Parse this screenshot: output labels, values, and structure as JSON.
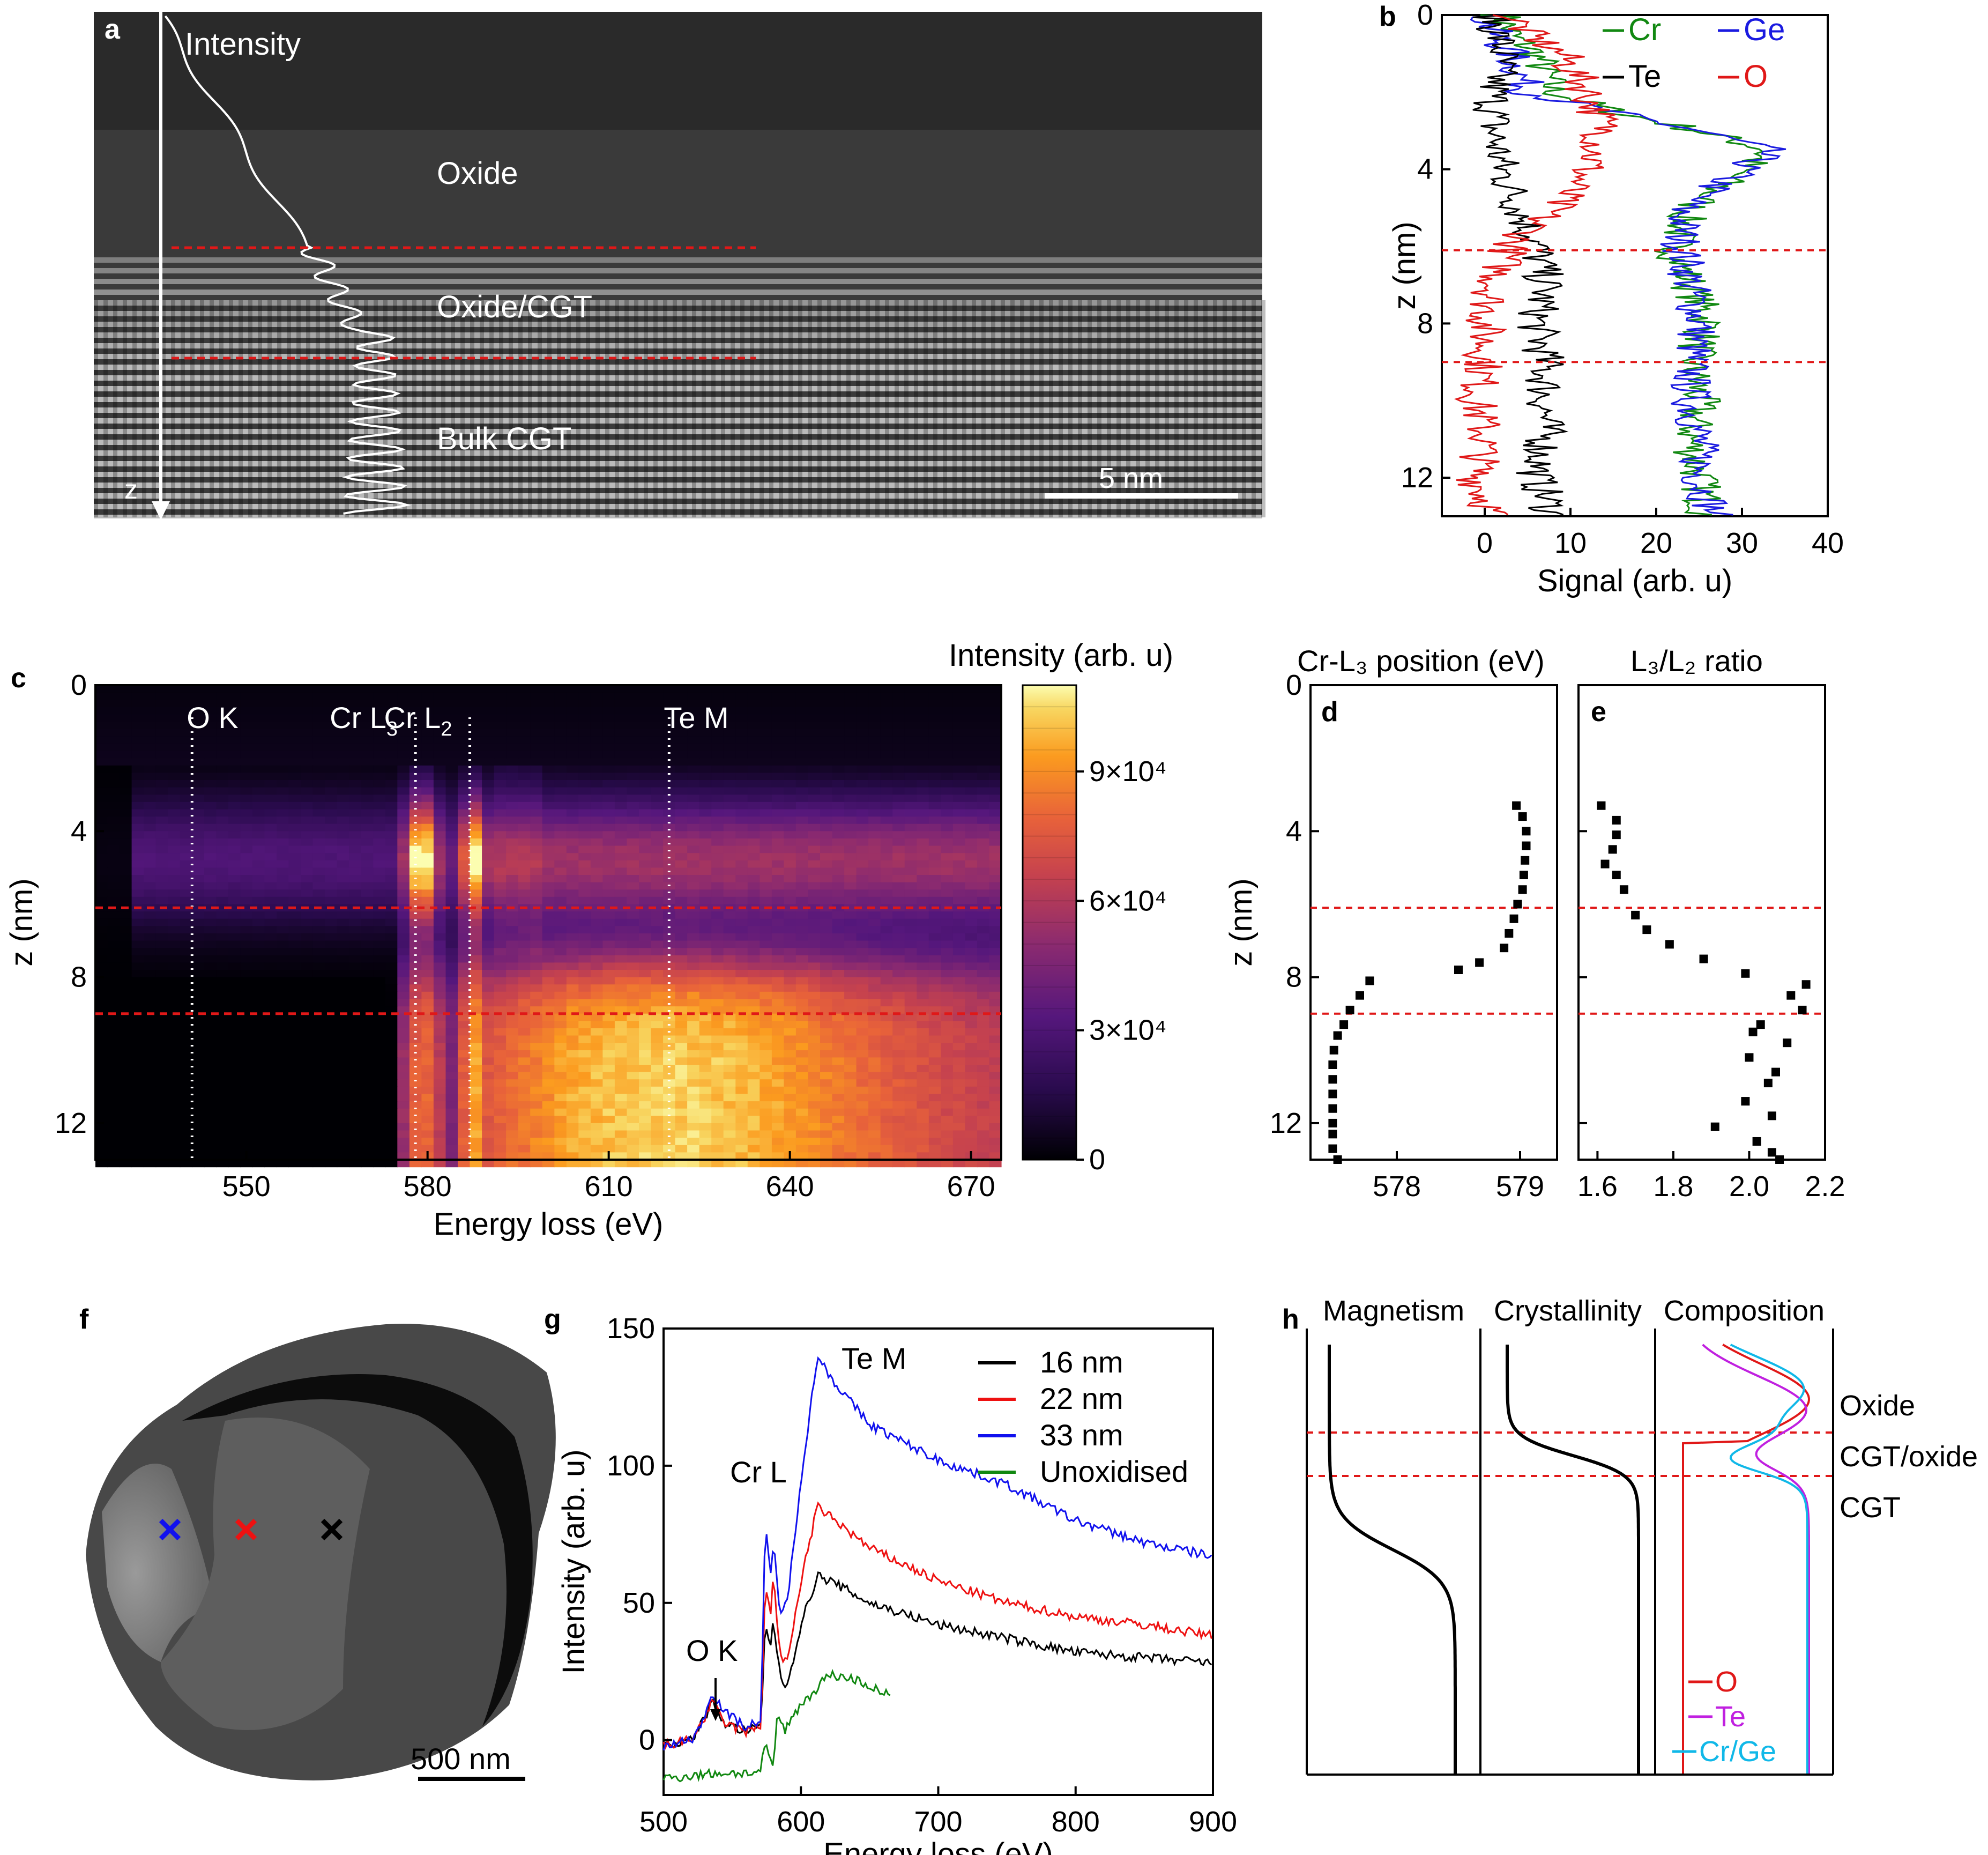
{
  "colors": {
    "Cr": "#118811",
    "Ge": "#1a1ae0",
    "Te": "#000000",
    "O": "#e01818",
    "Te_h": "#c020e0",
    "CrGe_h": "#10b8e8",
    "s16": "#000000",
    "s22": "#ee1111",
    "s33": "#1111ee",
    "unox": "#118811",
    "boundary": "#e01818"
  },
  "panels": {
    "a": {
      "label": "a",
      "intensity": "Intensity",
      "oxide": "Oxide",
      "oxide_cgt": "Oxide/CGT",
      "bulk": "Bulk CGT",
      "z": "z",
      "scale": "5 nm"
    },
    "b": {
      "label": "b"
    },
    "c": {
      "label": "c",
      "cbar_title": "Intensity (arb. u)"
    },
    "d": {
      "label": "d",
      "title": "Cr-L₃ position (eV)"
    },
    "e": {
      "label": "e",
      "title": "L₃/L₂ ratio"
    },
    "f": {
      "label": "f",
      "scale": "500 nm"
    },
    "g": {
      "label": "g"
    },
    "h": {
      "label": "h"
    }
  },
  "chart_data": [
    {
      "id": "b",
      "type": "line",
      "xlabel": "Signal (arb. u)",
      "ylabel": "z (nm)",
      "xlim": [
        -5,
        40
      ],
      "ylim": [
        13,
        0
      ],
      "xticks": [
        0,
        10,
        20,
        30,
        40
      ],
      "yticks": [
        0,
        4,
        8,
        12
      ],
      "boundaries_z": [
        6.1,
        9.0
      ],
      "legend": [
        "Cr",
        "Ge",
        "Te",
        "O"
      ],
      "series": [
        {
          "name": "Cr",
          "profile": [
            [
              0,
              2
            ],
            [
              0.5,
              3
            ],
            [
              1,
              6
            ],
            [
              2,
              8
            ],
            [
              2.5,
              15
            ],
            [
              3,
              25
            ],
            [
              3.5,
              33
            ],
            [
              4,
              30
            ],
            [
              5,
              24
            ],
            [
              6,
              22
            ],
            [
              7,
              24
            ],
            [
              8,
              26
            ],
            [
              9,
              24
            ],
            [
              10,
              25
            ],
            [
              11,
              24
            ],
            [
              12,
              25
            ],
            [
              13,
              26
            ]
          ]
        },
        {
          "name": "Ge",
          "profile": [
            [
              0,
              0
            ],
            [
              0.5,
              1
            ],
            [
              1,
              3
            ],
            [
              2,
              5
            ],
            [
              2.5,
              14
            ],
            [
              3,
              25
            ],
            [
              3.5,
              33
            ],
            [
              4,
              30
            ],
            [
              5,
              23
            ],
            [
              6,
              23
            ],
            [
              7,
              24
            ],
            [
              8,
              25
            ],
            [
              9,
              24
            ],
            [
              10,
              24
            ],
            [
              11,
              25
            ],
            [
              12,
              25
            ],
            [
              13,
              27
            ]
          ]
        },
        {
          "name": "Te",
          "profile": [
            [
              0,
              1
            ],
            [
              1,
              2
            ],
            [
              2,
              1
            ],
            [
              3,
              1
            ],
            [
              4,
              2
            ],
            [
              5,
              4
            ],
            [
              6,
              6
            ],
            [
              7,
              7
            ],
            [
              8,
              6
            ],
            [
              9,
              7
            ],
            [
              10,
              7
            ],
            [
              11,
              7
            ],
            [
              12,
              6
            ],
            [
              13,
              8
            ]
          ]
        },
        {
          "name": "O",
          "profile": [
            [
              0,
              3
            ],
            [
              0.5,
              5
            ],
            [
              1,
              9
            ],
            [
              2,
              12
            ],
            [
              3,
              14
            ],
            [
              4,
              12
            ],
            [
              5,
              8
            ],
            [
              6,
              3
            ],
            [
              7,
              1
            ],
            [
              8,
              0
            ],
            [
              9,
              0
            ],
            [
              10,
              -1
            ],
            [
              11,
              0
            ],
            [
              12,
              -1
            ],
            [
              13,
              1
            ]
          ]
        }
      ]
    },
    {
      "id": "c",
      "type": "heatmap",
      "xlabel": "Energy loss (eV)",
      "ylabel": "z (nm)",
      "xlim": [
        525,
        675
      ],
      "ylim": [
        13,
        0
      ],
      "xticks": [
        550,
        580,
        610,
        640,
        670
      ],
      "yticks": [
        0,
        4,
        8,
        12
      ],
      "annotations": [
        {
          "text": "O K",
          "x": 541
        },
        {
          "text": "Cr L",
          "sub": "3",
          "x": 578
        },
        {
          "text": "Cr L",
          "sub": "2",
          "x": 587
        },
        {
          "text": "Te M",
          "x": 620
        }
      ],
      "colorbar": {
        "min": 0,
        "max": 110000,
        "ticks": [
          0,
          30000,
          60000,
          90000
        ],
        "tick_labels": [
          "0",
          "3×10⁴",
          "6×10⁴",
          "9×10⁴"
        ]
      },
      "boundaries_z": [
        6.1,
        9.0
      ]
    },
    {
      "id": "d",
      "type": "scatter",
      "ylabel": "z (nm)",
      "xlim": [
        577.3,
        579.3
      ],
      "ylim": [
        13,
        0
      ],
      "xticks": [
        578,
        579
      ],
      "yticks": [
        0,
        4,
        8,
        12
      ],
      "boundaries_z": [
        6.1,
        9.0
      ],
      "points": [
        [
          578.97,
          3.3
        ],
        [
          579.02,
          3.6
        ],
        [
          579.05,
          4.0
        ],
        [
          579.05,
          4.4
        ],
        [
          579.04,
          4.8
        ],
        [
          579.03,
          5.2
        ],
        [
          579.02,
          5.6
        ],
        [
          578.98,
          6.0
        ],
        [
          578.95,
          6.4
        ],
        [
          578.91,
          6.8
        ],
        [
          578.87,
          7.2
        ],
        [
          578.67,
          7.6
        ],
        [
          578.5,
          7.8
        ],
        [
          577.78,
          8.1
        ],
        [
          577.7,
          8.5
        ],
        [
          577.62,
          8.9
        ],
        [
          577.57,
          9.3
        ],
        [
          577.52,
          9.6
        ],
        [
          577.49,
          10.0
        ],
        [
          577.48,
          10.4
        ],
        [
          577.48,
          10.8
        ],
        [
          577.48,
          11.2
        ],
        [
          577.48,
          11.6
        ],
        [
          577.48,
          12.0
        ],
        [
          577.48,
          12.3
        ],
        [
          577.48,
          12.7
        ],
        [
          577.52,
          13.0
        ]
      ]
    },
    {
      "id": "e",
      "type": "scatter",
      "xlim": [
        1.55,
        2.2
      ],
      "ylim": [
        13,
        0
      ],
      "xticks": [
        1.6,
        1.8,
        2.0,
        2.2
      ],
      "yticks": [
        0,
        4,
        8,
        12
      ],
      "boundaries_z": [
        6.1,
        9.0
      ],
      "points": [
        [
          1.61,
          3.3
        ],
        [
          1.65,
          3.7
        ],
        [
          1.65,
          4.1
        ],
        [
          1.64,
          4.5
        ],
        [
          1.62,
          4.9
        ],
        [
          1.65,
          5.2
        ],
        [
          1.67,
          5.6
        ],
        [
          1.7,
          6.3
        ],
        [
          1.73,
          6.7
        ],
        [
          1.79,
          7.1
        ],
        [
          1.88,
          7.5
        ],
        [
          1.99,
          7.9
        ],
        [
          2.15,
          8.2
        ],
        [
          2.11,
          8.5
        ],
        [
          2.14,
          8.9
        ],
        [
          2.03,
          9.3
        ],
        [
          2.01,
          9.5
        ],
        [
          2.1,
          9.8
        ],
        [
          2.0,
          10.2
        ],
        [
          2.07,
          10.6
        ],
        [
          2.05,
          10.9
        ],
        [
          1.99,
          11.4
        ],
        [
          2.06,
          11.8
        ],
        [
          1.91,
          12.1
        ],
        [
          2.02,
          12.5
        ],
        [
          2.06,
          12.8
        ],
        [
          2.08,
          13.0
        ]
      ]
    },
    {
      "id": "g",
      "type": "line",
      "xlabel": "Energy loss (eV)",
      "ylabel": "Intensity (arb. u)",
      "xlim": [
        500,
        900
      ],
      "ylim": [
        -20,
        150
      ],
      "xticks": [
        500,
        600,
        700,
        800,
        900
      ],
      "yticks": [
        0,
        50,
        100,
        150
      ],
      "annotations": [
        {
          "text": "O K",
          "x": 530,
          "y": 22
        },
        {
          "text": "Cr L",
          "x": 575,
          "y": 83
        },
        {
          "text": "Te M",
          "x": 640,
          "y": 142
        }
      ],
      "legend": [
        "16 nm",
        "22 nm",
        "33 nm",
        "Unoxidised"
      ],
      "series": [
        {
          "name": "16 nm",
          "profile": [
            [
              500,
              -2
            ],
            [
              520,
              0
            ],
            [
              530,
              8
            ],
            [
              535,
              14
            ],
            [
              545,
              6
            ],
            [
              560,
              3
            ],
            [
              571,
              5
            ],
            [
              574,
              42
            ],
            [
              578,
              35
            ],
            [
              580,
              44
            ],
            [
              585,
              22
            ],
            [
              590,
              20
            ],
            [
              600,
              42
            ],
            [
              612,
              60
            ],
            [
              625,
              57
            ],
            [
              650,
              50
            ],
            [
              700,
              42
            ],
            [
              750,
              37
            ],
            [
              800,
              32
            ],
            [
              850,
              30
            ],
            [
              900,
              28
            ]
          ]
        },
        {
          "name": "22 nm",
          "profile": [
            [
              500,
              -2
            ],
            [
              520,
              0
            ],
            [
              530,
              8
            ],
            [
              535,
              14
            ],
            [
              545,
              6
            ],
            [
              560,
              3
            ],
            [
              571,
              5
            ],
            [
              574,
              58
            ],
            [
              578,
              46
            ],
            [
              580,
              60
            ],
            [
              585,
              30
            ],
            [
              590,
              28
            ],
            [
              600,
              58
            ],
            [
              612,
              85
            ],
            [
              625,
              80
            ],
            [
              650,
              70
            ],
            [
              700,
              58
            ],
            [
              750,
              50
            ],
            [
              800,
              45
            ],
            [
              850,
              42
            ],
            [
              900,
              38
            ]
          ]
        },
        {
          "name": "33 nm",
          "profile": [
            [
              500,
              -2
            ],
            [
              520,
              0
            ],
            [
              530,
              8
            ],
            [
              535,
              18
            ],
            [
              545,
              10
            ],
            [
              560,
              5
            ],
            [
              571,
              7
            ],
            [
              574,
              78
            ],
            [
              578,
              60
            ],
            [
              580,
              72
            ],
            [
              585,
              46
            ],
            [
              590,
              50
            ],
            [
              600,
              95
            ],
            [
              612,
              140
            ],
            [
              625,
              130
            ],
            [
              650,
              115
            ],
            [
              700,
              102
            ],
            [
              750,
              93
            ],
            [
              800,
              80
            ],
            [
              850,
              72
            ],
            [
              900,
              67
            ]
          ]
        },
        {
          "name": "Unoxidised",
          "profile": [
            [
              500,
              -14
            ],
            [
              540,
              -12
            ],
            [
              570,
              -12
            ],
            [
              574,
              -2
            ],
            [
              577,
              -7
            ],
            [
              580,
              -9
            ],
            [
              583,
              10
            ],
            [
              588,
              3
            ],
            [
              595,
              10
            ],
            [
              610,
              18
            ],
            [
              620,
              24
            ],
            [
              640,
              22
            ],
            [
              665,
              16
            ]
          ]
        }
      ]
    },
    {
      "id": "h",
      "type": "line",
      "column_titles": [
        "Magnetism",
        "Crystallinity",
        "Composition"
      ],
      "layer_labels": [
        "Oxide",
        "CGT/oxide",
        "CGT"
      ],
      "legend": [
        "O",
        "Te",
        "Cr/Ge"
      ]
    }
  ]
}
